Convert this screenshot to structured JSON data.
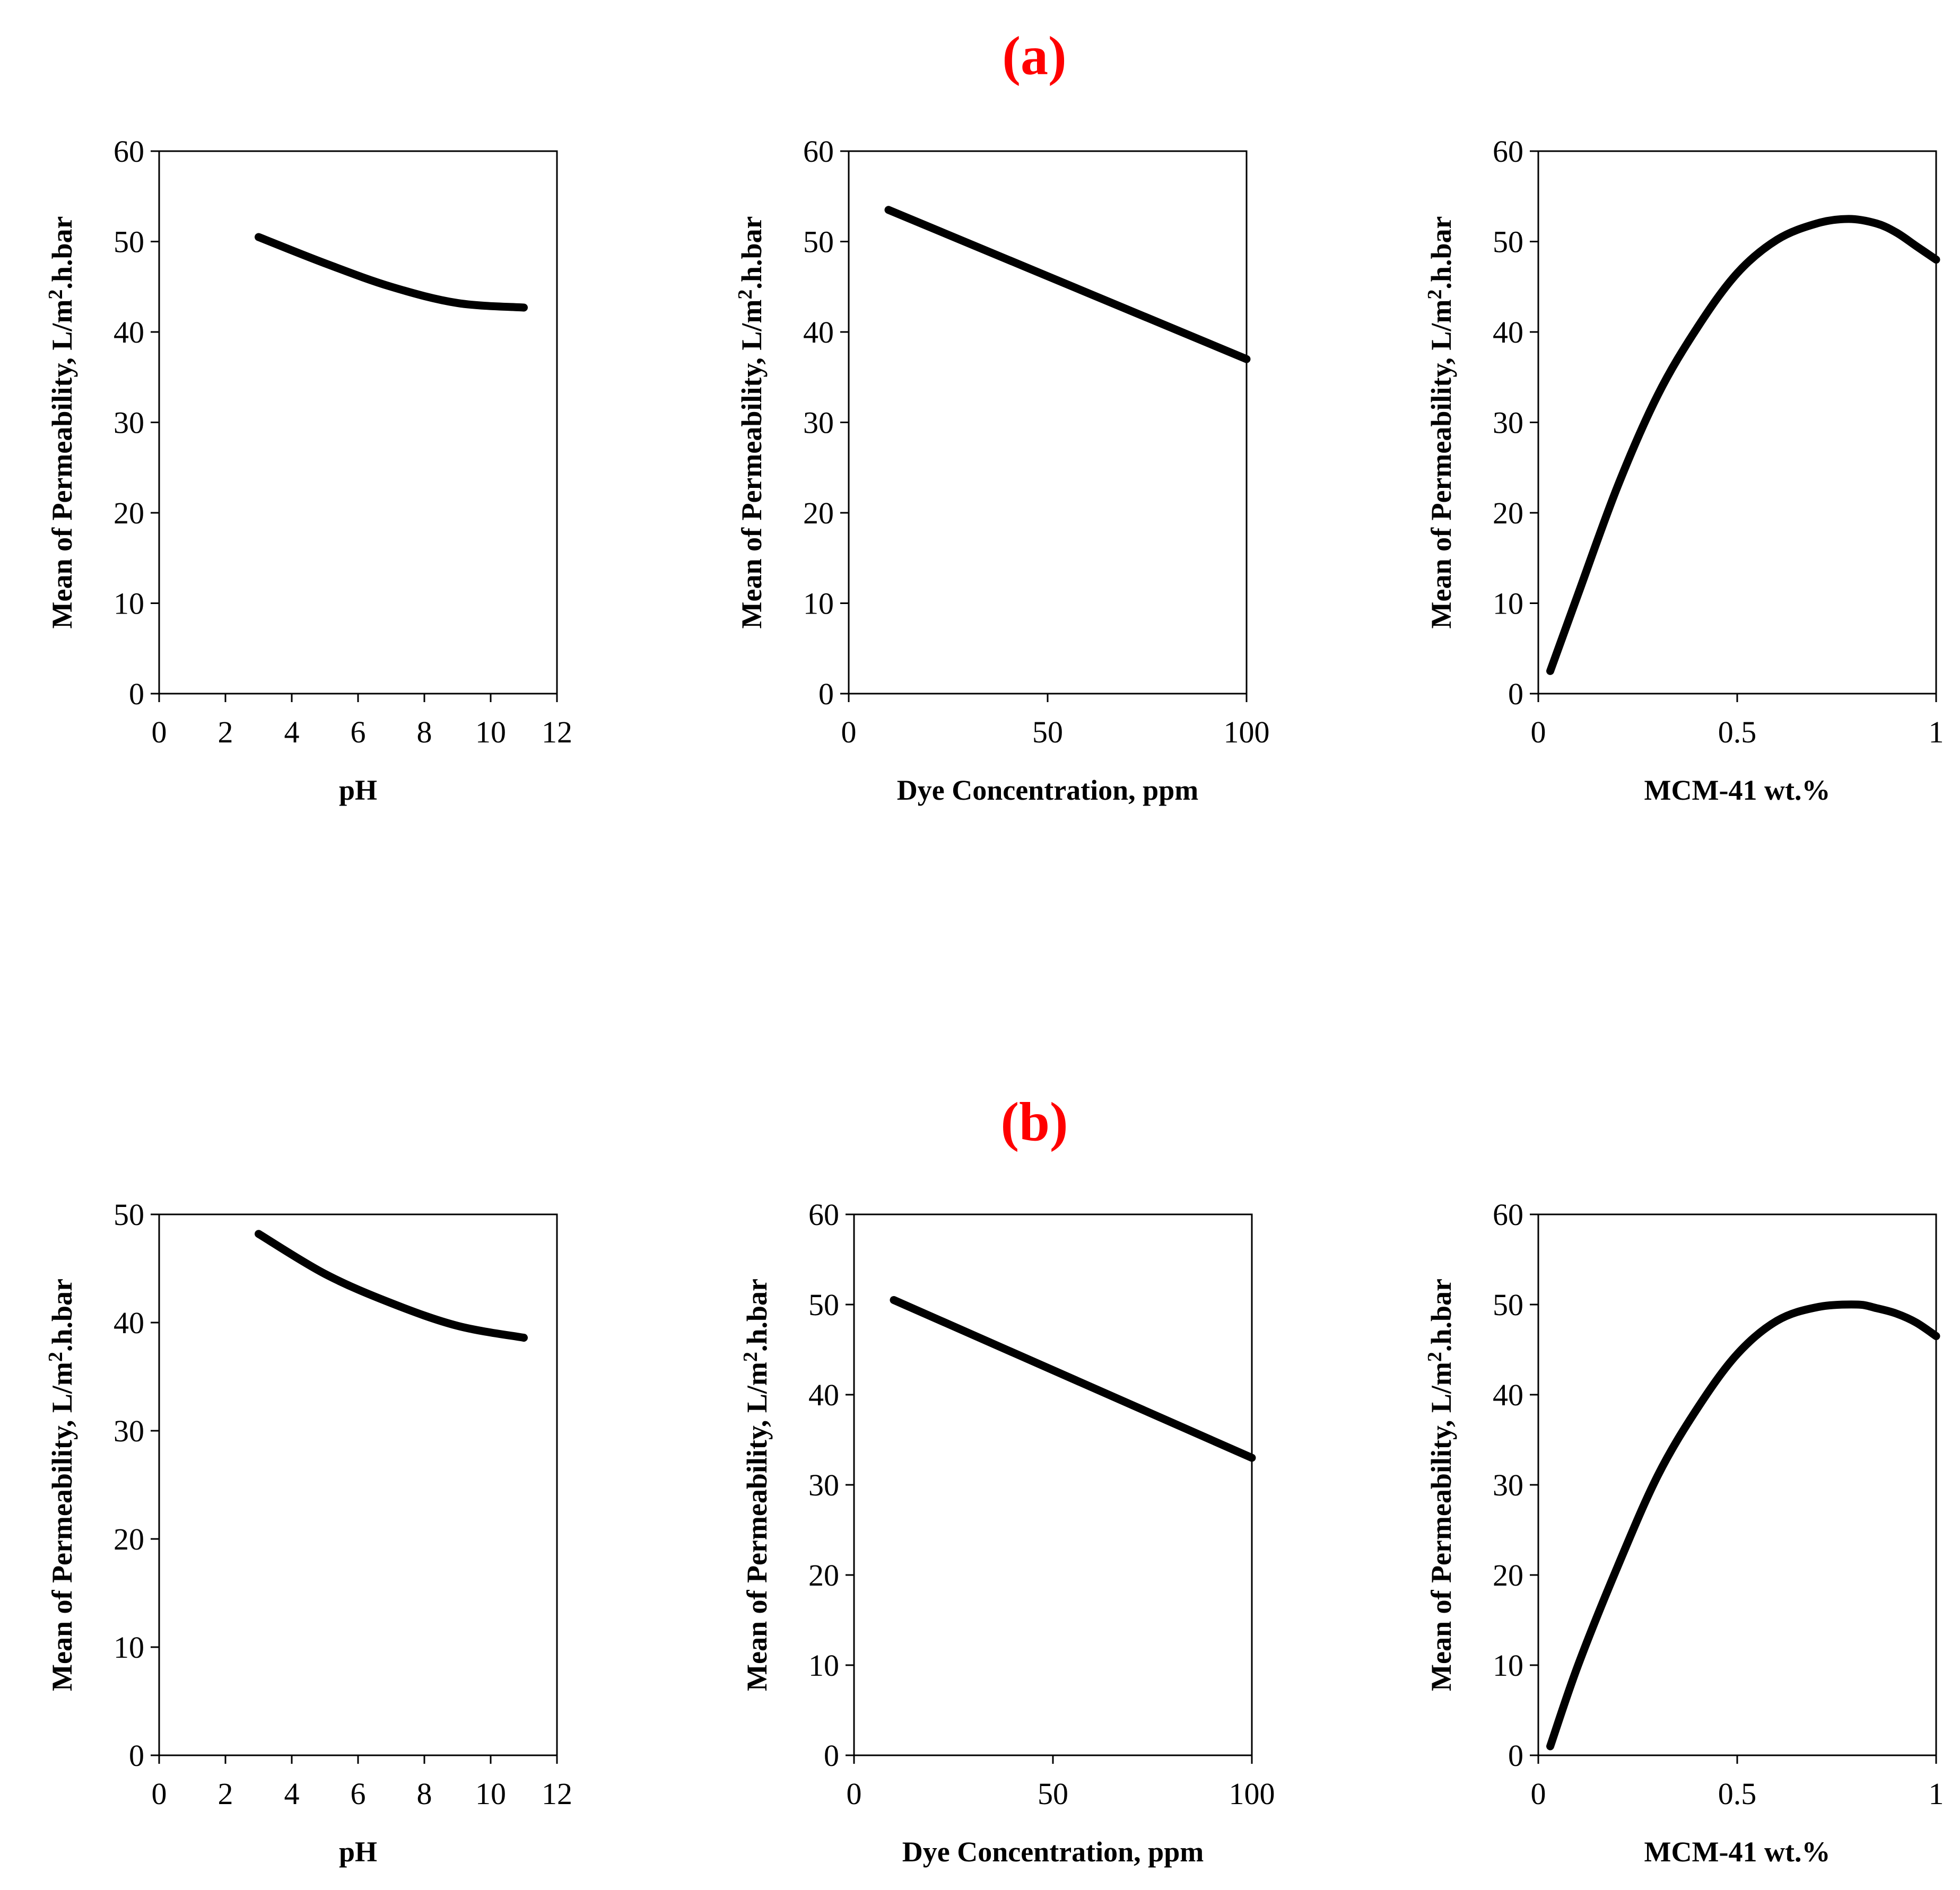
{
  "colors": {
    "panel_label": "#ff0000",
    "line": "#000000",
    "background": "#ffffff"
  },
  "panels": [
    {
      "id": "a",
      "label": "(a)"
    },
    {
      "id": "b",
      "label": "(b)"
    }
  ],
  "chart_data": [
    {
      "panel": "a",
      "type": "line",
      "title": "",
      "xlabel": "pH",
      "ylabel": "Mean of Permeability, L/m2.h.bar",
      "xlim": [
        0,
        12
      ],
      "ylim": [
        0,
        60
      ],
      "xticks": [
        0,
        2,
        4,
        6,
        8,
        10,
        12
      ],
      "yticks": [
        0,
        10,
        20,
        30,
        40,
        50,
        60
      ],
      "x": [
        3,
        5,
        7,
        9,
        11
      ],
      "y": [
        50.5,
        47.6,
        45.0,
        43.2,
        42.7
      ]
    },
    {
      "panel": "a",
      "type": "line",
      "title": "",
      "xlabel": "Dye Concentration, ppm",
      "ylabel": "Mean of Permeability, L/m2.h.bar",
      "xlim": [
        0,
        100
      ],
      "ylim": [
        0,
        60
      ],
      "xticks": [
        0,
        50,
        100
      ],
      "yticks": [
        0,
        10,
        20,
        30,
        40,
        50,
        60
      ],
      "x": [
        10,
        100
      ],
      "y": [
        53.5,
        37.0
      ]
    },
    {
      "panel": "a",
      "type": "line",
      "title": "",
      "xlabel": "MCM-41 wt.%",
      "ylabel": "Mean of Permeability, L/m2.h.bar",
      "xlim": [
        0,
        1
      ],
      "ylim": [
        0,
        60
      ],
      "xticks": [
        0,
        0.5,
        1
      ],
      "yticks": [
        0,
        10,
        20,
        30,
        40,
        50,
        60
      ],
      "x": [
        0.03,
        0.1,
        0.2,
        0.3,
        0.4,
        0.5,
        0.6,
        0.7,
        0.78,
        0.85,
        0.9,
        0.95,
        1.0
      ],
      "y": [
        2.5,
        11.0,
        23.0,
        33.0,
        40.5,
        46.5,
        50.2,
        52.0,
        52.5,
        52.0,
        51.0,
        49.5,
        48.0
      ]
    },
    {
      "panel": "b",
      "type": "line",
      "title": "",
      "xlabel": "pH",
      "ylabel": "Mean of Permeability, L/m2.h.bar",
      "xlim": [
        0,
        12
      ],
      "ylim": [
        0,
        50
      ],
      "xticks": [
        0,
        2,
        4,
        6,
        8,
        10,
        12
      ],
      "yticks": [
        0,
        10,
        20,
        30,
        40,
        50
      ],
      "x": [
        3,
        5,
        7,
        9,
        11
      ],
      "y": [
        48.2,
        44.5,
        41.8,
        39.7,
        38.6
      ]
    },
    {
      "panel": "b",
      "type": "line",
      "title": "",
      "xlabel": "Dye Concentration, ppm",
      "ylabel": "Mean of Permeability, L/m2.h.bar",
      "xlim": [
        0,
        100
      ],
      "ylim": [
        0,
        60
      ],
      "xticks": [
        0,
        50,
        100
      ],
      "yticks": [
        0,
        10,
        20,
        30,
        40,
        50,
        60
      ],
      "x": [
        10,
        100
      ],
      "y": [
        50.5,
        33.0
      ]
    },
    {
      "panel": "b",
      "type": "line",
      "title": "",
      "xlabel": "MCM-41 wt.%",
      "ylabel": "Mean of Permeability, L/m2.h.bar",
      "xlim": [
        0,
        1
      ],
      "ylim": [
        0,
        60
      ],
      "xticks": [
        0,
        0.5,
        1
      ],
      "yticks": [
        0,
        10,
        20,
        30,
        40,
        50,
        60
      ],
      "x": [
        0.03,
        0.1,
        0.2,
        0.3,
        0.4,
        0.5,
        0.6,
        0.7,
        0.8,
        0.85,
        0.9,
        0.95,
        1.0
      ],
      "y": [
        1.0,
        10.0,
        21.0,
        31.0,
        38.5,
        44.5,
        48.2,
        49.7,
        50.0,
        49.6,
        49.0,
        48.0,
        46.5
      ]
    }
  ]
}
